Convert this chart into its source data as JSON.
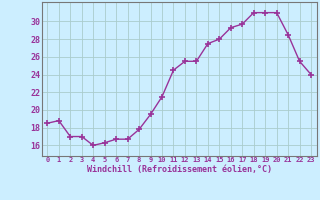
{
  "x": [
    0,
    1,
    2,
    3,
    4,
    5,
    6,
    7,
    8,
    9,
    10,
    11,
    12,
    13,
    14,
    15,
    16,
    17,
    18,
    19,
    20,
    21,
    22,
    23
  ],
  "y": [
    18.5,
    18.8,
    17.0,
    17.0,
    16.0,
    16.3,
    16.7,
    16.7,
    17.8,
    19.5,
    21.5,
    24.5,
    25.5,
    25.5,
    27.5,
    28.0,
    29.3,
    29.7,
    31.0,
    31.0,
    31.0,
    28.5,
    25.5,
    24.0
  ],
  "line_color": "#993399",
  "marker_color": "#993399",
  "bg_color": "#cceeff",
  "grid_color": "#aacccc",
  "xlabel": "Windchill (Refroidissement éolien,°C)",
  "xlabel_color": "#993399",
  "tick_color": "#993399",
  "spine_color": "#777777",
  "yticks": [
    16,
    18,
    20,
    22,
    24,
    26,
    28,
    30
  ],
  "ylim": [
    14.8,
    32.2
  ],
  "xlim": [
    -0.5,
    23.5
  ]
}
